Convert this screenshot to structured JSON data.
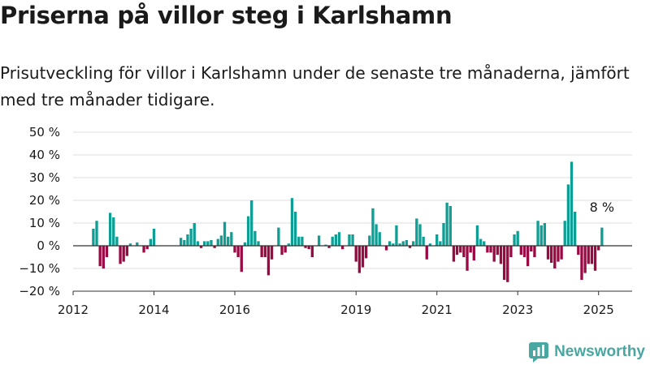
{
  "header": {
    "title": "Priserna på villor steg i Karlshamn",
    "subtitle": "Prisutveckling för villor i Karlshamn under de senaste tre månaderna, jämfört med tre månader tidigare."
  },
  "brand": {
    "name": "Newsworthy"
  },
  "colors": {
    "positive": "#0f9e94",
    "negative": "#990a45",
    "grid": "#dddddd",
    "text": "#1a1a1a",
    "brand": "#48a7a0"
  },
  "chart_data": {
    "type": "bar",
    "ylim": [
      -20,
      50
    ],
    "yticks": [
      50,
      40,
      30,
      20,
      10,
      0,
      -10,
      -20
    ],
    "ytick_labels": [
      "50 %",
      "40 %",
      "30 %",
      "20 %",
      "10 %",
      "0 %",
      "−10 %",
      "−20 %"
    ],
    "xlim": [
      2012.0,
      2025.83
    ],
    "xticks": [
      2012,
      2014,
      2016,
      2019,
      2021,
      2023,
      2025
    ],
    "xtick_labels": [
      "2012",
      "2014",
      "2016",
      "2019",
      "2021",
      "2023",
      "2025"
    ],
    "x_start": 2012.5,
    "x_step": 0.08333,
    "values": [
      7.5,
      11,
      -9,
      -10,
      -5,
      14.5,
      12.5,
      4,
      -8,
      -7,
      -4.5,
      1,
      0,
      1.5,
      0,
      -3,
      -1.5,
      3,
      7.5,
      0,
      0,
      0,
      0,
      0,
      0,
      0,
      3.5,
      2.5,
      5,
      7.5,
      10,
      2,
      -1,
      2,
      2,
      2.5,
      -1,
      3,
      4.5,
      10.5,
      4,
      6,
      -3,
      -5,
      -11.5,
      1.5,
      13,
      20,
      6.5,
      2,
      -5,
      -5,
      -13,
      -6,
      0,
      8,
      -4,
      -3,
      1,
      21,
      15,
      4,
      4,
      -1,
      -1.5,
      -5,
      0,
      4.5,
      0,
      0.5,
      -1,
      4,
      5,
      6,
      -1.5,
      0,
      5,
      5,
      -7,
      -12,
      -9.5,
      -5.5,
      4.5,
      16.5,
      9.5,
      6,
      0,
      -2,
      2,
      1,
      9,
      1,
      2,
      2.5,
      -1,
      2,
      12,
      9.5,
      4,
      -6,
      1,
      0,
      5,
      2,
      10,
      19,
      17.5,
      -7,
      -4,
      -3,
      -5,
      -11,
      -3,
      -6.5,
      9,
      3,
      2,
      -3,
      -3,
      -7,
      -4,
      -8,
      -15,
      -16,
      -5,
      5,
      6.5,
      -4,
      -5,
      -9,
      -2.5,
      -5,
      11,
      9,
      10,
      -6,
      -7.5,
      -10,
      -7,
      -6,
      11,
      27,
      37,
      15,
      -4,
      -15,
      -12,
      -8,
      -8,
      -11,
      -2,
      8
    ],
    "annotations": [
      {
        "text": "8 %"
      }
    ]
  }
}
